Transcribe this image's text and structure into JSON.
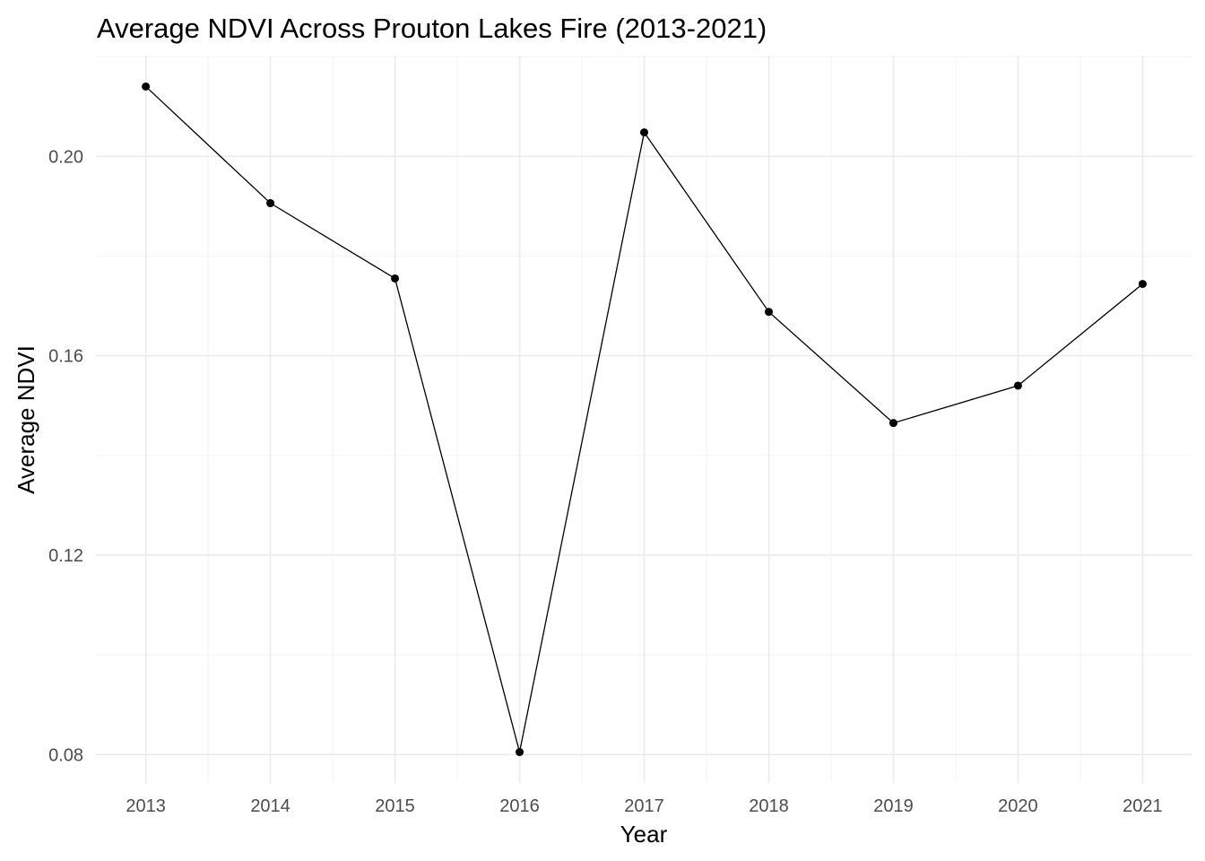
{
  "chart_data": {
    "type": "line",
    "title": "Average NDVI Across Prouton Lakes Fire (2013-2021)",
    "xlabel": "Year",
    "ylabel": "Average NDVI",
    "x": [
      2013,
      2014,
      2015,
      2016,
      2017,
      2018,
      2019,
      2020,
      2021
    ],
    "y": [
      0.214,
      0.1906,
      0.1755,
      0.0805,
      0.2048,
      0.1688,
      0.1465,
      0.154,
      0.1744
    ],
    "x_tick_labels": [
      "2013",
      "2014",
      "2015",
      "2016",
      "2017",
      "2018",
      "2019",
      "2020",
      "2021"
    ],
    "y_ticks": [
      0.08,
      0.12,
      0.16,
      0.2
    ],
    "y_tick_labels": [
      "0.08",
      "0.12",
      "0.16",
      "0.20"
    ],
    "xlim": [
      2012.6,
      2021.4
    ],
    "ylim": [
      0.0743,
      0.2202
    ],
    "grid": true,
    "legend": "none",
    "colors": {
      "line": "#000000",
      "points": "#000000",
      "grid": "#ebebeb",
      "background": "#ffffff"
    }
  }
}
